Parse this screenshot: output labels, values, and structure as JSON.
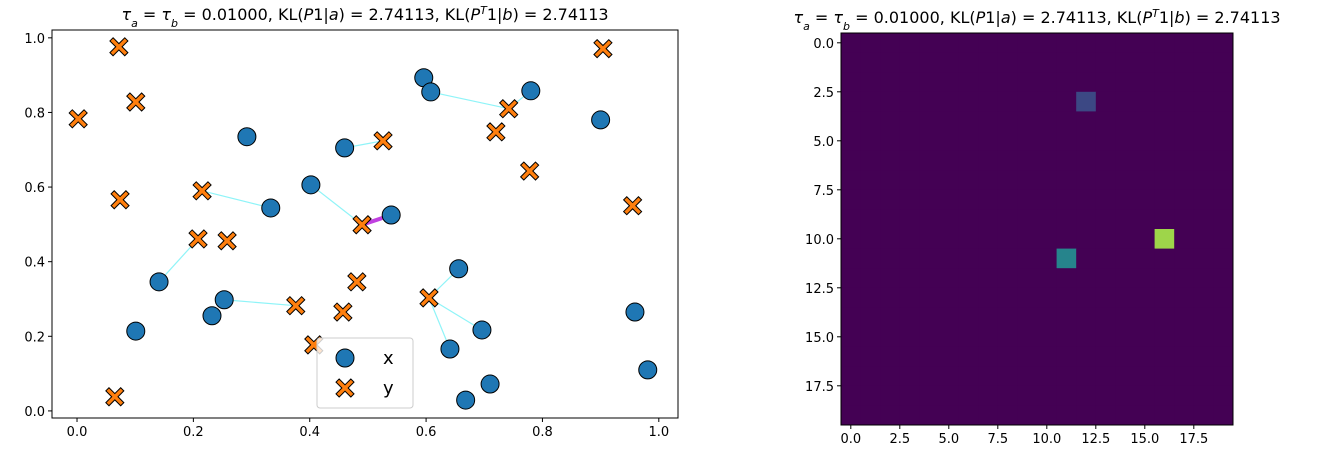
{
  "chart_data": [
    {
      "type": "scatter",
      "title": [
        {
          "text": "τ",
          "style": "italic"
        },
        {
          "text": "a",
          "style": "sub"
        },
        {
          "text": " = ",
          "style": "normal"
        },
        {
          "text": "τ",
          "style": "italic"
        },
        {
          "text": "b",
          "style": "sub"
        },
        {
          "text": " = 0.01000, KL(",
          "style": "normal"
        },
        {
          "text": "P",
          "style": "italic"
        },
        {
          "text": "1|",
          "style": "normal"
        },
        {
          "text": "a",
          "style": "italic"
        },
        {
          "text": ") = 2.74113, KL(",
          "style": "normal"
        },
        {
          "text": "P",
          "style": "italic"
        },
        {
          "text": "T",
          "style": "sup"
        },
        {
          "text": "1|",
          "style": "normal"
        },
        {
          "text": "b",
          "style": "italic"
        },
        {
          "text": ") = 2.74113",
          "style": "normal"
        }
      ],
      "series": [
        {
          "name": "x",
          "color": "#1f77b4",
          "marker": "o",
          "x": [
            0.596,
            0.608,
            0.78,
            0.9,
            0.292,
            0.46,
            0.402,
            0.333,
            0.54,
            0.656,
            0.141,
            0.253,
            0.232,
            0.101,
            0.696,
            0.641,
            0.959,
            0.71,
            0.668,
            0.981
          ],
          "y": [
            0.893,
            0.855,
            0.858,
            0.78,
            0.735,
            0.705,
            0.606,
            0.544,
            0.525,
            0.381,
            0.346,
            0.298,
            0.255,
            0.214,
            0.217,
            0.166,
            0.265,
            0.072,
            0.029,
            0.11
          ]
        },
        {
          "name": "y",
          "color": "#ff7f0e",
          "marker": "X",
          "x": [
            0.072,
            0.904,
            0.101,
            0.002,
            0.742,
            0.72,
            0.526,
            0.778,
            0.215,
            0.074,
            0.955,
            0.49,
            0.208,
            0.258,
            0.481,
            0.605,
            0.376,
            0.457,
            0.407,
            0.065
          ],
          "y": [
            0.976,
            0.971,
            0.828,
            0.783,
            0.81,
            0.748,
            0.724,
            0.643,
            0.59,
            0.566,
            0.55,
            0.499,
            0.461,
            0.456,
            0.346,
            0.303,
            0.282,
            0.265,
            0.177,
            0.038
          ]
        }
      ],
      "links": [
        {
          "source": 1,
          "target": 4,
          "color": "#8ff4f8"
        },
        {
          "source": 2,
          "target": 4,
          "color": "#8ff4f8"
        },
        {
          "source": 5,
          "target": 6,
          "color": "#8ff4f8"
        },
        {
          "source": 7,
          "target": 8,
          "color": "#8ff4f8"
        },
        {
          "source": 6,
          "target": 11,
          "color": "#8ff4f8"
        },
        {
          "source": 8,
          "target": 11,
          "color": "#c040e0"
        },
        {
          "source": 10,
          "target": 12,
          "color": "#8ff4f8"
        },
        {
          "source": 11,
          "target": 16,
          "color": "#8ff4f8"
        },
        {
          "source": 9,
          "target": 15,
          "color": "#8ff4f8"
        },
        {
          "source": 15,
          "target": 15,
          "color": "#8ff4f8"
        },
        {
          "source": 14,
          "target": 15,
          "color": "#8ff4f8"
        }
      ],
      "xlim": [
        -0.043,
        1.033
      ],
      "ylim": [
        -0.019,
        1.021
      ],
      "xticks": [
        {
          "value": 0,
          "label": "0.0"
        },
        0.2,
        0.4,
        0.6,
        0.8,
        {
          "value": 1,
          "label": "1.0"
        }
      ],
      "yticks": [
        {
          "value": 0,
          "label": "0.0"
        },
        0.2,
        0.4,
        0.6,
        0.8,
        {
          "value": 1,
          "label": "1.0"
        }
      ],
      "legend": "lower center",
      "grid": false
    },
    {
      "type": "heatmap",
      "title": [
        {
          "text": "τ",
          "style": "italic"
        },
        {
          "text": "a",
          "style": "sub"
        },
        {
          "text": " = ",
          "style": "normal"
        },
        {
          "text": "τ",
          "style": "italic"
        },
        {
          "text": "b",
          "style": "sub"
        },
        {
          "text": " = 0.01000, KL(",
          "style": "normal"
        },
        {
          "text": "P",
          "style": "italic"
        },
        {
          "text": "1|",
          "style": "normal"
        },
        {
          "text": "a",
          "style": "italic"
        },
        {
          "text": ") = 2.74113, KL(",
          "style": "normal"
        },
        {
          "text": "P",
          "style": "italic"
        },
        {
          "text": "T",
          "style": "sup"
        },
        {
          "text": "1|",
          "style": "normal"
        },
        {
          "text": "b",
          "style": "italic"
        },
        {
          "text": ") = 2.74113",
          "style": "normal"
        }
      ],
      "colormap": "viridis",
      "clim": [
        0,
        1
      ],
      "values": [
        [
          0,
          0,
          0,
          0,
          0,
          0,
          0,
          0,
          0,
          0,
          0,
          0,
          0,
          0,
          0,
          0,
          0,
          0,
          0,
          0
        ],
        [
          0,
          0,
          0,
          0,
          0,
          0,
          0,
          0,
          0,
          0,
          0,
          0,
          0,
          0,
          0,
          0,
          0,
          0,
          0,
          0
        ],
        [
          0,
          0,
          0,
          0,
          0,
          0,
          0,
          0,
          0,
          0,
          0,
          0,
          0,
          0,
          0,
          0,
          0,
          0,
          0,
          0
        ],
        [
          0,
          0,
          0,
          0,
          0,
          0,
          0,
          0,
          0,
          0,
          0,
          0,
          0.22,
          0,
          0,
          0,
          0,
          0,
          0,
          0
        ],
        [
          0,
          0,
          0,
          0,
          0,
          0,
          0,
          0,
          0,
          0,
          0,
          0,
          0,
          0,
          0,
          0,
          0,
          0,
          0,
          0
        ],
        [
          0,
          0,
          0,
          0,
          0,
          0,
          0,
          0,
          0,
          0,
          0,
          0,
          0,
          0,
          0,
          0,
          0,
          0,
          0,
          0
        ],
        [
          0,
          0,
          0,
          0,
          0,
          0,
          0,
          0,
          0,
          0,
          0,
          0,
          0,
          0,
          0,
          0,
          0,
          0,
          0,
          0
        ],
        [
          0,
          0,
          0,
          0,
          0,
          0,
          0,
          0,
          0,
          0,
          0,
          0,
          0,
          0,
          0,
          0,
          0,
          0,
          0,
          0
        ],
        [
          0,
          0,
          0,
          0,
          0,
          0,
          0,
          0,
          0,
          0,
          0,
          0,
          0,
          0,
          0,
          0,
          0,
          0,
          0,
          0
        ],
        [
          0,
          0,
          0,
          0,
          0,
          0,
          0,
          0,
          0,
          0,
          0,
          0,
          0,
          0,
          0,
          0,
          0,
          0,
          0,
          0
        ],
        [
          0,
          0,
          0,
          0,
          0,
          0,
          0,
          0,
          0,
          0,
          0,
          0,
          0,
          0,
          0,
          0,
          0.85,
          0,
          0,
          0
        ],
        [
          0,
          0,
          0,
          0,
          0,
          0,
          0,
          0,
          0,
          0,
          0,
          0.45,
          0,
          0,
          0,
          0,
          0,
          0,
          0,
          0
        ],
        [
          0,
          0,
          0,
          0,
          0,
          0,
          0,
          0,
          0,
          0,
          0,
          0,
          0,
          0,
          0,
          0,
          0,
          0,
          0,
          0
        ],
        [
          0,
          0,
          0,
          0,
          0,
          0,
          0,
          0,
          0,
          0,
          0,
          0,
          0,
          0,
          0,
          0,
          0,
          0,
          0,
          0
        ],
        [
          0,
          0,
          0,
          0,
          0,
          0,
          0,
          0,
          0,
          0,
          0,
          0,
          0,
          0,
          0,
          0,
          0,
          0,
          0,
          0
        ],
        [
          0,
          0,
          0,
          0,
          0,
          0,
          0,
          0,
          0,
          0,
          0,
          0,
          0,
          0,
          0,
          0,
          0,
          0,
          0,
          0
        ],
        [
          0,
          0,
          0,
          0,
          0,
          0,
          0,
          0,
          0,
          0,
          0,
          0,
          0,
          0,
          0,
          0,
          0,
          0,
          0,
          0
        ],
        [
          0,
          0,
          0,
          0,
          0,
          0,
          0,
          0,
          0,
          0,
          0,
          0,
          0,
          0,
          0,
          0,
          0,
          0,
          0,
          0
        ],
        [
          0,
          0,
          0,
          0,
          0,
          0,
          0,
          0,
          0,
          0,
          0,
          0,
          0,
          0,
          0,
          0,
          0,
          0,
          0,
          0
        ],
        [
          0,
          0,
          0,
          0,
          0,
          0,
          0,
          0,
          0,
          0,
          0,
          0,
          0,
          0,
          0,
          0,
          0,
          0,
          0,
          0
        ]
      ],
      "xlim": [
        -0.5,
        19.5
      ],
      "ylim": [
        19.5,
        -0.5
      ],
      "xticks": [
        {
          "value": 0,
          "label": "0.0"
        },
        2.5,
        {
          "value": 5,
          "label": "5.0"
        },
        7.5,
        {
          "value": 10,
          "label": "10.0"
        },
        12.5,
        {
          "value": 15,
          "label": "15.0"
        },
        17.5
      ],
      "yticks": [
        {
          "value": 0,
          "label": "0.0"
        },
        2.5,
        {
          "value": 5,
          "label": "5.0"
        },
        7.5,
        {
          "value": 10,
          "label": "10.0"
        },
        12.5,
        {
          "value": 15,
          "label": "15.0"
        },
        17.5
      ]
    }
  ]
}
